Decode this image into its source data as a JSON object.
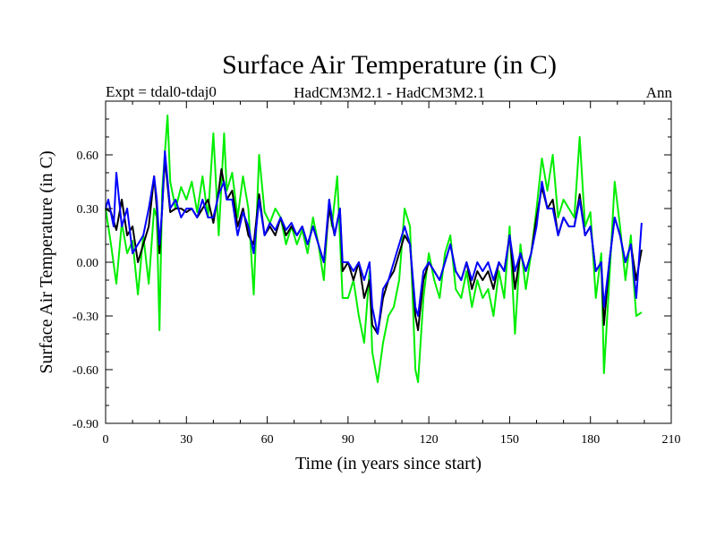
{
  "chart_data": {
    "type": "line",
    "title": "Surface Air Temperature (in C)",
    "subtitle_left": "Expt = tdal0-tdaj0",
    "subtitle_center": "HadCM3M2.1 - HadCM3M2.1",
    "subtitle_right": "Ann",
    "xlabel": "Time (in years since start)",
    "ylabel": "Surface Air Temperature (in C)",
    "xlim": [
      0,
      210
    ],
    "ylim": [
      -0.9,
      0.9
    ],
    "xticks": [
      0,
      30,
      60,
      90,
      120,
      150,
      180,
      210
    ],
    "xtick_labels": [
      "0",
      "30",
      "60",
      "90",
      "120",
      "150",
      "180",
      "210"
    ],
    "yticks": [
      -0.9,
      -0.6,
      -0.3,
      0.0,
      0.3,
      0.6
    ],
    "ytick_labels": [
      "-0.90",
      "-0.60",
      "-0.30",
      "0.00",
      "0.30",
      "0.60"
    ],
    "grid": false,
    "series": [
      {
        "name": "green",
        "color": "#00ee00",
        "points": [
          [
            0,
            0.3
          ],
          [
            2,
            0.1
          ],
          [
            4,
            -0.12
          ],
          [
            6,
            0.22
          ],
          [
            8,
            0.05
          ],
          [
            10,
            0.12
          ],
          [
            12,
            -0.18
          ],
          [
            14,
            0.15
          ],
          [
            16,
            -0.12
          ],
          [
            18,
            0.3
          ],
          [
            19,
            0.25
          ],
          [
            20,
            -0.38
          ],
          [
            21,
            0.4
          ],
          [
            23,
            0.82
          ],
          [
            24,
            0.45
          ],
          [
            26,
            0.3
          ],
          [
            28,
            0.42
          ],
          [
            30,
            0.35
          ],
          [
            32,
            0.45
          ],
          [
            34,
            0.28
          ],
          [
            36,
            0.48
          ],
          [
            38,
            0.25
          ],
          [
            40,
            0.72
          ],
          [
            42,
            0.15
          ],
          [
            44,
            0.72
          ],
          [
            45,
            0.4
          ],
          [
            47,
            0.5
          ],
          [
            49,
            0.25
          ],
          [
            51,
            0.48
          ],
          [
            53,
            0.3
          ],
          [
            55,
            -0.18
          ],
          [
            57,
            0.6
          ],
          [
            59,
            0.28
          ],
          [
            61,
            0.22
          ],
          [
            63,
            0.3
          ],
          [
            65,
            0.25
          ],
          [
            67,
            0.1
          ],
          [
            69,
            0.2
          ],
          [
            71,
            0.1
          ],
          [
            73,
            0.18
          ],
          [
            75,
            0.05
          ],
          [
            77,
            0.25
          ],
          [
            79,
            0.1
          ],
          [
            81,
            -0.1
          ],
          [
            83,
            0.35
          ],
          [
            84,
            0.2
          ],
          [
            86,
            0.48
          ],
          [
            88,
            -0.2
          ],
          [
            90,
            -0.2
          ],
          [
            92,
            -0.1
          ],
          [
            94,
            -0.3
          ],
          [
            96,
            -0.45
          ],
          [
            98,
            -0.05
          ],
          [
            99,
            -0.5
          ],
          [
            101,
            -0.67
          ],
          [
            103,
            -0.45
          ],
          [
            105,
            -0.3
          ],
          [
            107,
            -0.25
          ],
          [
            109,
            -0.1
          ],
          [
            111,
            0.3
          ],
          [
            113,
            0.2
          ],
          [
            115,
            -0.6
          ],
          [
            116,
            -0.67
          ],
          [
            118,
            -0.2
          ],
          [
            120,
            0.05
          ],
          [
            122,
            -0.1
          ],
          [
            124,
            -0.2
          ],
          [
            126,
            0.05
          ],
          [
            128,
            0.15
          ],
          [
            130,
            -0.15
          ],
          [
            132,
            -0.2
          ],
          [
            134,
            -0.05
          ],
          [
            136,
            -0.25
          ],
          [
            138,
            -0.1
          ],
          [
            140,
            -0.2
          ],
          [
            142,
            -0.15
          ],
          [
            144,
            -0.3
          ],
          [
            146,
            -0.05
          ],
          [
            148,
            -0.2
          ],
          [
            150,
            0.2
          ],
          [
            152,
            -0.4
          ],
          [
            154,
            0.1
          ],
          [
            156,
            -0.15
          ],
          [
            158,
            0.05
          ],
          [
            160,
            0.3
          ],
          [
            162,
            0.58
          ],
          [
            164,
            0.4
          ],
          [
            166,
            0.6
          ],
          [
            168,
            0.25
          ],
          [
            170,
            0.35
          ],
          [
            172,
            0.3
          ],
          [
            174,
            0.25
          ],
          [
            176,
            0.7
          ],
          [
            178,
            0.2
          ],
          [
            180,
            0.28
          ],
          [
            182,
            -0.2
          ],
          [
            184,
            0.05
          ],
          [
            185,
            -0.62
          ],
          [
            187,
            -0.1
          ],
          [
            189,
            0.45
          ],
          [
            191,
            0.2
          ],
          [
            193,
            -0.1
          ],
          [
            195,
            0.15
          ],
          [
            196,
            -0.1
          ],
          [
            197,
            -0.3
          ],
          [
            199,
            -0.28
          ]
        ]
      },
      {
        "name": "black",
        "color": "#000000",
        "points": [
          [
            0,
            0.3
          ],
          [
            2,
            0.28
          ],
          [
            4,
            0.18
          ],
          [
            6,
            0.35
          ],
          [
            8,
            0.15
          ],
          [
            10,
            0.2
          ],
          [
            12,
            0.0
          ],
          [
            14,
            0.1
          ],
          [
            16,
            0.2
          ],
          [
            18,
            0.48
          ],
          [
            19,
            0.3
          ],
          [
            20,
            0.05
          ],
          [
            21,
            0.3
          ],
          [
            22,
            0.58
          ],
          [
            24,
            0.28
          ],
          [
            26,
            0.3
          ],
          [
            28,
            0.3
          ],
          [
            30,
            0.28
          ],
          [
            32,
            0.3
          ],
          [
            34,
            0.25
          ],
          [
            36,
            0.3
          ],
          [
            38,
            0.35
          ],
          [
            40,
            0.22
          ],
          [
            42,
            0.4
          ],
          [
            43,
            0.52
          ],
          [
            45,
            0.35
          ],
          [
            47,
            0.4
          ],
          [
            49,
            0.2
          ],
          [
            51,
            0.3
          ],
          [
            53,
            0.15
          ],
          [
            55,
            0.1
          ],
          [
            57,
            0.38
          ],
          [
            59,
            0.15
          ],
          [
            61,
            0.2
          ],
          [
            63,
            0.15
          ],
          [
            65,
            0.25
          ],
          [
            67,
            0.15
          ],
          [
            69,
            0.2
          ],
          [
            71,
            0.15
          ],
          [
            73,
            0.2
          ],
          [
            75,
            0.1
          ],
          [
            77,
            0.2
          ],
          [
            79,
            0.1
          ],
          [
            81,
            0.0
          ],
          [
            83,
            0.3
          ],
          [
            85,
            0.15
          ],
          [
            87,
            0.3
          ],
          [
            88,
            -0.05
          ],
          [
            90,
            0.0
          ],
          [
            92,
            -0.1
          ],
          [
            94,
            0.0
          ],
          [
            96,
            -0.2
          ],
          [
            98,
            -0.1
          ],
          [
            99,
            -0.35
          ],
          [
            101,
            -0.4
          ],
          [
            103,
            -0.2
          ],
          [
            105,
            -0.1
          ],
          [
            107,
            -0.05
          ],
          [
            109,
            0.05
          ],
          [
            111,
            0.15
          ],
          [
            113,
            0.1
          ],
          [
            115,
            -0.3
          ],
          [
            116,
            -0.38
          ],
          [
            118,
            -0.1
          ],
          [
            120,
            0.0
          ],
          [
            122,
            -0.05
          ],
          [
            124,
            -0.1
          ],
          [
            126,
            0.0
          ],
          [
            128,
            0.1
          ],
          [
            130,
            -0.05
          ],
          [
            132,
            -0.1
          ],
          [
            134,
            0.0
          ],
          [
            136,
            -0.15
          ],
          [
            138,
            -0.05
          ],
          [
            140,
            -0.1
          ],
          [
            142,
            -0.05
          ],
          [
            144,
            -0.15
          ],
          [
            146,
            0.0
          ],
          [
            148,
            -0.05
          ],
          [
            150,
            0.15
          ],
          [
            152,
            -0.15
          ],
          [
            154,
            0.05
          ],
          [
            156,
            -0.05
          ],
          [
            158,
            0.05
          ],
          [
            160,
            0.25
          ],
          [
            162,
            0.42
          ],
          [
            164,
            0.3
          ],
          [
            166,
            0.35
          ],
          [
            168,
            0.15
          ],
          [
            170,
            0.25
          ],
          [
            172,
            0.2
          ],
          [
            174,
            0.2
          ],
          [
            176,
            0.38
          ],
          [
            178,
            0.15
          ],
          [
            180,
            0.2
          ],
          [
            182,
            -0.05
          ],
          [
            184,
            0.0
          ],
          [
            185,
            -0.35
          ],
          [
            187,
            0.0
          ],
          [
            189,
            0.25
          ],
          [
            191,
            0.15
          ],
          [
            193,
            0.0
          ],
          [
            195,
            0.1
          ],
          [
            197,
            -0.1
          ],
          [
            199,
            0.07
          ]
        ]
      },
      {
        "name": "blue",
        "color": "#0000ff",
        "points": [
          [
            0,
            0.3
          ],
          [
            1,
            0.35
          ],
          [
            3,
            0.2
          ],
          [
            4,
            0.5
          ],
          [
            6,
            0.2
          ],
          [
            8,
            0.3
          ],
          [
            10,
            0.05
          ],
          [
            12,
            0.1
          ],
          [
            14,
            0.15
          ],
          [
            16,
            0.3
          ],
          [
            18,
            0.48
          ],
          [
            19,
            0.35
          ],
          [
            20,
            0.1
          ],
          [
            21,
            0.3
          ],
          [
            22,
            0.62
          ],
          [
            24,
            0.3
          ],
          [
            26,
            0.35
          ],
          [
            28,
            0.25
          ],
          [
            30,
            0.3
          ],
          [
            32,
            0.3
          ],
          [
            34,
            0.25
          ],
          [
            36,
            0.35
          ],
          [
            38,
            0.25
          ],
          [
            40,
            0.25
          ],
          [
            42,
            0.38
          ],
          [
            44,
            0.45
          ],
          [
            45,
            0.35
          ],
          [
            47,
            0.35
          ],
          [
            49,
            0.15
          ],
          [
            51,
            0.28
          ],
          [
            53,
            0.2
          ],
          [
            55,
            0.05
          ],
          [
            57,
            0.35
          ],
          [
            59,
            0.15
          ],
          [
            61,
            0.22
          ],
          [
            63,
            0.18
          ],
          [
            65,
            0.25
          ],
          [
            67,
            0.18
          ],
          [
            69,
            0.22
          ],
          [
            71,
            0.15
          ],
          [
            73,
            0.2
          ],
          [
            75,
            0.1
          ],
          [
            77,
            0.2
          ],
          [
            79,
            0.1
          ],
          [
            81,
            0.0
          ],
          [
            83,
            0.35
          ],
          [
            85,
            0.15
          ],
          [
            87,
            0.3
          ],
          [
            88,
            0.0
          ],
          [
            90,
            0.0
          ],
          [
            92,
            -0.05
          ],
          [
            94,
            0.0
          ],
          [
            96,
            -0.1
          ],
          [
            98,
            0.0
          ],
          [
            99,
            -0.25
          ],
          [
            101,
            -0.4
          ],
          [
            103,
            -0.15
          ],
          [
            105,
            -0.1
          ],
          [
            107,
            0.0
          ],
          [
            109,
            0.1
          ],
          [
            111,
            0.2
          ],
          [
            113,
            0.1
          ],
          [
            115,
            -0.25
          ],
          [
            116,
            -0.3
          ],
          [
            118,
            -0.05
          ],
          [
            120,
            0.0
          ],
          [
            122,
            -0.05
          ],
          [
            124,
            -0.1
          ],
          [
            126,
            0.0
          ],
          [
            128,
            0.1
          ],
          [
            130,
            -0.05
          ],
          [
            132,
            -0.1
          ],
          [
            134,
            0.0
          ],
          [
            136,
            -0.1
          ],
          [
            138,
            0.0
          ],
          [
            140,
            -0.05
          ],
          [
            142,
            0.0
          ],
          [
            144,
            -0.1
          ],
          [
            146,
            0.0
          ],
          [
            148,
            -0.05
          ],
          [
            150,
            0.15
          ],
          [
            152,
            -0.05
          ],
          [
            154,
            0.05
          ],
          [
            156,
            -0.05
          ],
          [
            158,
            0.05
          ],
          [
            160,
            0.2
          ],
          [
            162,
            0.45
          ],
          [
            164,
            0.3
          ],
          [
            166,
            0.3
          ],
          [
            168,
            0.15
          ],
          [
            170,
            0.25
          ],
          [
            172,
            0.2
          ],
          [
            174,
            0.2
          ],
          [
            176,
            0.35
          ],
          [
            178,
            0.15
          ],
          [
            180,
            0.2
          ],
          [
            182,
            -0.05
          ],
          [
            184,
            0.0
          ],
          [
            185,
            -0.25
          ],
          [
            187,
            0.0
          ],
          [
            189,
            0.25
          ],
          [
            191,
            0.15
          ],
          [
            193,
            0.0
          ],
          [
            195,
            0.1
          ],
          [
            197,
            -0.2
          ],
          [
            199,
            0.22
          ]
        ]
      }
    ]
  }
}
